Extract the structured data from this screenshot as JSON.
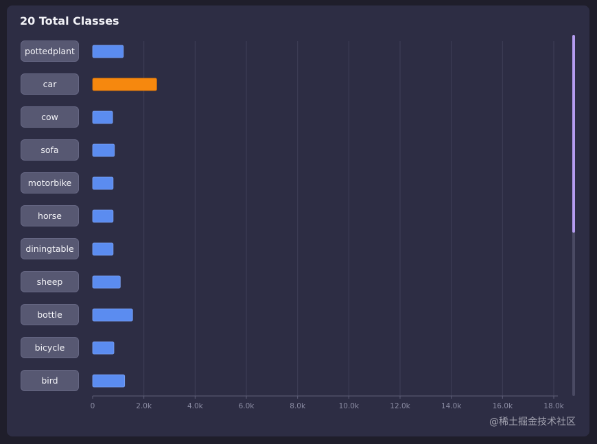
{
  "title": "20 Total Classes",
  "watermark": "@稀土掘金技术社区",
  "colors": {
    "bar": "#5b8cf0",
    "highlight": "#f6880e",
    "grid": "#3f4058",
    "axis": "#5e5f78",
    "scroll_thumb": "#b49cf0"
  },
  "chart_data": {
    "type": "bar",
    "orientation": "horizontal",
    "title": "20 Total Classes",
    "xlim": [
      0,
      18000
    ],
    "x_ticks": [
      0,
      2000,
      4000,
      6000,
      8000,
      10000,
      12000,
      14000,
      16000,
      18000
    ],
    "x_tick_labels": [
      "0",
      "2.0k",
      "4.0k",
      "6.0k",
      "8.0k",
      "10.0k",
      "12.0k",
      "14.0k",
      "16.0k",
      "18.0k"
    ],
    "categories": [
      "pottedplant",
      "car",
      "cow",
      "sofa",
      "motorbike",
      "horse",
      "diningtable",
      "sheep",
      "bottle",
      "bicycle",
      "bird"
    ],
    "values": [
      1200,
      2500,
      780,
      850,
      800,
      800,
      800,
      1080,
      1560,
      830,
      1250
    ],
    "highlighted": [
      "car"
    ],
    "total_classes": 20
  }
}
